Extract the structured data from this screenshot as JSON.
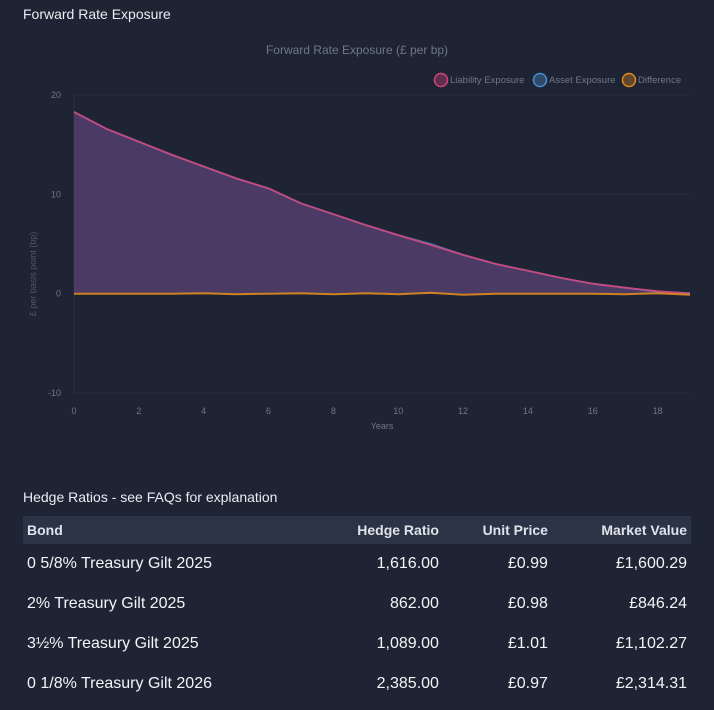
{
  "header": {
    "title": "Forward Rate Exposure"
  },
  "chart_data": {
    "type": "area",
    "title": "Forward Rate Exposure (£ per bp)",
    "xlabel": "Years",
    "ylabel": "£ per basis point (bp)",
    "xlim": [
      0,
      19
    ],
    "ylim": [
      -10,
      20
    ],
    "xticks": [
      0,
      2,
      4,
      6,
      8,
      10,
      12,
      14,
      16,
      18
    ],
    "yticks": [
      -10,
      0,
      10,
      20
    ],
    "x": [
      0,
      1,
      2,
      3,
      4,
      5,
      6,
      7,
      8,
      9,
      10,
      11,
      12,
      13,
      14,
      15,
      16,
      17,
      18,
      19
    ],
    "series": [
      {
        "name": "Liability Exposure",
        "color": "#d4447a",
        "values": [
          18.3,
          16.6,
          15.3,
          14.0,
          12.8,
          11.6,
          10.6,
          9.1,
          8.0,
          6.9,
          5.9,
          4.9,
          3.9,
          3.0,
          2.3,
          1.6,
          1.0,
          0.6,
          0.25,
          0.0
        ]
      },
      {
        "name": "Asset Exposure",
        "color": "#4a8fd4",
        "values": [
          18.3,
          16.6,
          15.3,
          14.0,
          12.8,
          11.6,
          10.6,
          9.1,
          8.0,
          6.9,
          5.9,
          5.0,
          3.9,
          3.0,
          2.3,
          1.6,
          1.0,
          0.6,
          0.2,
          0.05
        ]
      },
      {
        "name": "Difference",
        "color": "#e08a1e",
        "values": [
          0.0,
          0.0,
          0.0,
          0.0,
          0.05,
          -0.05,
          0.0,
          0.05,
          -0.05,
          0.05,
          -0.05,
          0.1,
          -0.1,
          0.0,
          0.0,
          0.0,
          0.0,
          -0.05,
          0.05,
          -0.1
        ]
      }
    ]
  },
  "hedge": {
    "title": "Hedge Ratios - see FAQs for explanation",
    "columns": [
      "Bond",
      "Hedge Ratio",
      "Unit Price",
      "Market Value"
    ],
    "rows": [
      [
        "0 5/8% Treasury Gilt 2025",
        "1,616.00",
        "£0.99",
        "£1,600.29"
      ],
      [
        "2% Treasury Gilt 2025",
        "862.00",
        "£0.98",
        "£846.24"
      ],
      [
        "3½% Treasury Gilt 2025",
        "1,089.00",
        "£1.01",
        "£1,102.27"
      ],
      [
        "0 1/8% Treasury Gilt 2026",
        "2,385.00",
        "£0.97",
        "£2,314.31"
      ]
    ]
  }
}
